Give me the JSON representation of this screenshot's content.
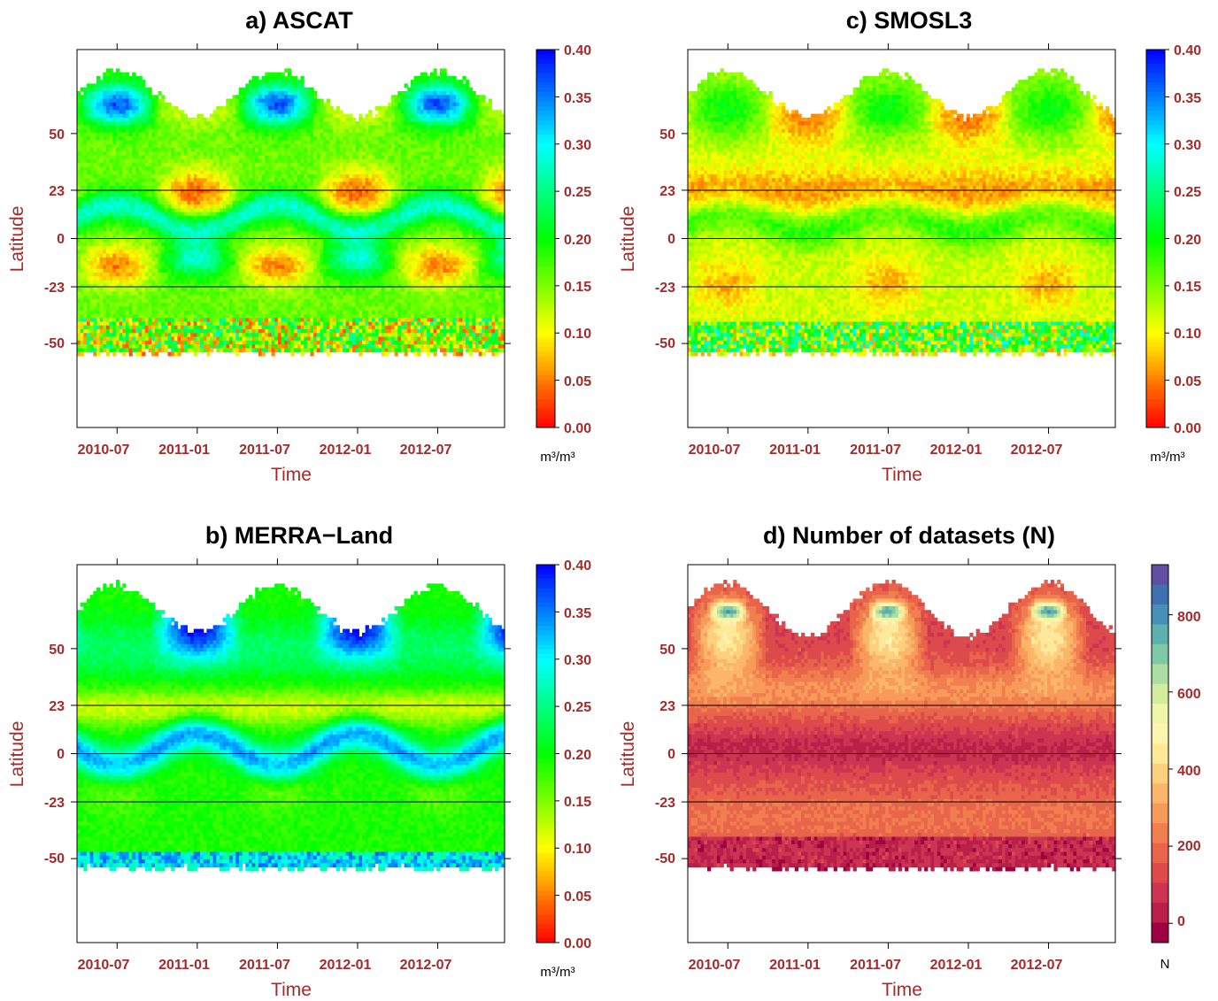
{
  "chart_data": [
    {
      "type": "heatmap",
      "id": "ascat",
      "title": "a) ASCAT",
      "xlabel": "Time",
      "ylabel": "Latitude",
      "x_ticks": [
        "2010-07",
        "2011-01",
        "2011-07",
        "2012-01",
        "2012-07"
      ],
      "x_range": [
        "2010-04",
        "2012-12"
      ],
      "y_ticks": [
        "50",
        "23",
        "0",
        "-23",
        "-50"
      ],
      "y_range": [
        -90,
        90
      ],
      "reference_lines_lat": [
        23,
        0,
        -23
      ],
      "colorbar": {
        "min": 0.0,
        "max": 0.4,
        "ticks": [
          "0.40",
          "0.35",
          "0.30",
          "0.25",
          "0.20",
          "0.15",
          "0.10",
          "0.05",
          "0.00"
        ],
        "unit": "m³/m³",
        "palette": "rainbow-red-to-blue"
      },
      "pattern": "ascat"
    },
    {
      "type": "heatmap",
      "id": "merra",
      "title": "b) MERRA−Land",
      "xlabel": "Time",
      "ylabel": "Latitude",
      "x_ticks": [
        "2010-07",
        "2011-01",
        "2011-07",
        "2012-01",
        "2012-07"
      ],
      "x_range": [
        "2010-04",
        "2012-12"
      ],
      "y_ticks": [
        "50",
        "23",
        "0",
        "-23",
        "-50"
      ],
      "y_range": [
        -90,
        90
      ],
      "reference_lines_lat": [
        23,
        0,
        -23
      ],
      "colorbar": {
        "min": 0.0,
        "max": 0.4,
        "ticks": [
          "0.40",
          "0.35",
          "0.30",
          "0.25",
          "0.20",
          "0.15",
          "0.10",
          "0.05",
          "0.00"
        ],
        "unit": "m³/m³",
        "palette": "rainbow-red-to-blue"
      },
      "pattern": "merra"
    },
    {
      "type": "heatmap",
      "id": "smos",
      "title": "c) SMOSL3",
      "xlabel": "Time",
      "ylabel": "Latitude",
      "x_ticks": [
        "2010-07",
        "2011-01",
        "2011-07",
        "2012-01",
        "2012-07"
      ],
      "x_range": [
        "2010-04",
        "2012-12"
      ],
      "y_ticks": [
        "50",
        "23",
        "0",
        "-23",
        "-50"
      ],
      "y_range": [
        -90,
        90
      ],
      "reference_lines_lat": [
        23,
        0,
        -23
      ],
      "colorbar": {
        "min": 0.0,
        "max": 0.4,
        "ticks": [
          "0.40",
          "0.35",
          "0.30",
          "0.25",
          "0.20",
          "0.15",
          "0.10",
          "0.05",
          "0.00"
        ],
        "unit": "m³/m³",
        "palette": "rainbow-red-to-blue"
      },
      "pattern": "smos"
    },
    {
      "type": "heatmap",
      "id": "count",
      "title": "d) Number of datasets (N)",
      "xlabel": "Time",
      "ylabel": "Latitude",
      "x_ticks": [
        "2010-07",
        "2011-01",
        "2011-07",
        "2012-01",
        "2012-07"
      ],
      "x_range": [
        "2010-04",
        "2012-12"
      ],
      "y_ticks": [
        "50",
        "23",
        "0",
        "-23",
        "-50"
      ],
      "y_range": [
        -90,
        90
      ],
      "reference_lines_lat": [
        23,
        0,
        -23
      ],
      "colorbar": {
        "min": -50,
        "max": 930,
        "ticks": [
          "800",
          "600",
          "400",
          "200",
          "0"
        ],
        "unit": "N",
        "palette": "spectral"
      },
      "pattern": "count"
    }
  ]
}
